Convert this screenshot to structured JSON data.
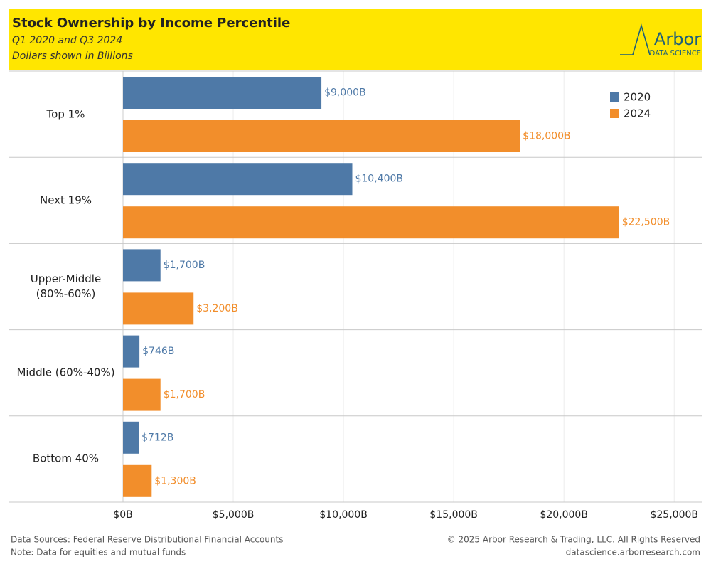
{
  "chart_data": {
    "type": "bar",
    "orientation": "horizontal",
    "title": "Stock Ownership by Income Percentile",
    "subtitle": [
      "Q1 2020 and Q3 2024",
      "Dollars shown in Billions"
    ],
    "logo": [
      "Arbor",
      "DATA SCIENCE"
    ],
    "categories": [
      "Top 1%",
      "Next 19%",
      "Upper-Middle (80%-60%)",
      "Middle (60%-40%)",
      "Bottom 40%"
    ],
    "series": [
      {
        "name": "2020",
        "color": "#4e79a7",
        "values": [
          9000,
          10400,
          1700,
          746,
          712
        ],
        "value_labels": [
          "$9,000B",
          "$10,400B",
          "$1,700B",
          "$746B",
          "$712B"
        ]
      },
      {
        "name": "2024",
        "color": "#f28e2b",
        "values": [
          18000,
          22500,
          3200,
          1700,
          1300
        ],
        "value_labels": [
          "$18,000B",
          "$22,500B",
          "$3,200B",
          "$1,700B",
          "$1,300B"
        ]
      }
    ],
    "xlim": [
      0,
      26250
    ],
    "xticks": [
      {
        "value": 0,
        "label": "$0B"
      },
      {
        "value": 5000,
        "label": "$5,000B"
      },
      {
        "value": 10000,
        "label": "$10,000B"
      },
      {
        "value": 15000,
        "label": "$15,000B"
      },
      {
        "value": 20000,
        "label": "$20,000B"
      },
      {
        "value": 25000,
        "label": "$25,000B"
      }
    ],
    "grid": true,
    "legend": "upper right",
    "sources": [
      "Data Sources: Federal Reserve Distributional Financial Accounts",
      "Note: Data for equities and mutual funds"
    ],
    "credits": [
      "© 2025 Arbor Research & Trading, LLC. All Rights Reserved",
      "datascience.arborresearch.com"
    ]
  }
}
